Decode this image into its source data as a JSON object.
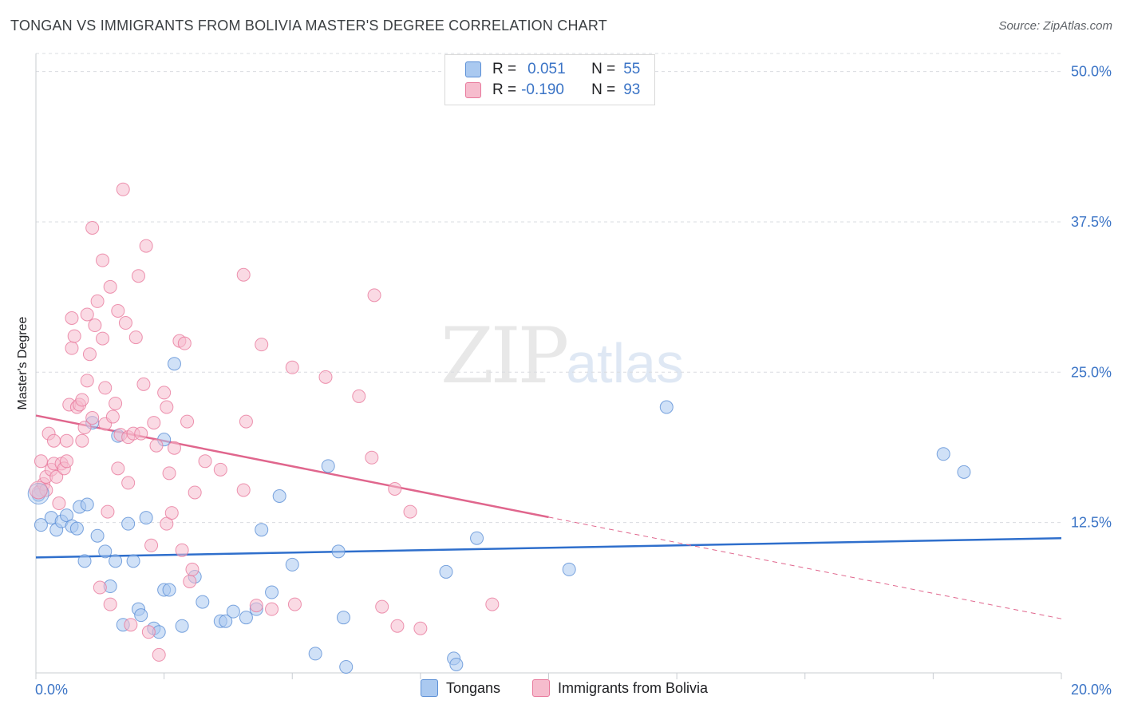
{
  "title": "TONGAN VS IMMIGRANTS FROM BOLIVIA MASTER'S DEGREE CORRELATION CHART",
  "source": "Source: ZipAtlas.com",
  "watermark": {
    "zip": "ZIP",
    "atlas": "atlas"
  },
  "legend": {
    "r_label": "R =",
    "n_label": "N =",
    "series": [
      {
        "name": "Tongans",
        "r": "0.051",
        "n": "55"
      },
      {
        "name": "Immigrants from Bolivia",
        "r": "-0.190",
        "n": "93"
      }
    ]
  },
  "chart_data": {
    "type": "scatter",
    "title": "TONGAN VS IMMIGRANTS FROM BOLIVIA MASTER'S DEGREE CORRELATION CHART",
    "xlabel": "",
    "ylabel": "Master's Degree",
    "xlim": [
      0,
      20
    ],
    "ylim": [
      0,
      51.5
    ],
    "x_tick_labels": [
      "0.0%",
      "20.0%"
    ],
    "y_ticks": [
      12.5,
      25.0,
      37.5,
      50.0
    ],
    "y_tick_labels": [
      "12.5%",
      "25.0%",
      "37.5%",
      "50.0%"
    ],
    "grid": true,
    "colors": {
      "tongans_fill": "#aac9f0",
      "tongans_stroke": "#5b8fd6",
      "tongans_line": "#2f6fcc",
      "bolivia_fill": "#f6bccd",
      "bolivia_stroke": "#e8799c",
      "bolivia_line": "#e0668d",
      "tick_label": "#3b74c6",
      "grid": "#dadce0"
    },
    "series": [
      {
        "name": "Tongans",
        "r": 0.051,
        "n": 55,
        "trend": {
          "x": [
            0,
            20
          ],
          "y": [
            9.6,
            11.2
          ],
          "dashed_from": null
        },
        "points": [
          [
            0.1,
            15.2
          ],
          [
            0.1,
            12.3
          ],
          [
            0.3,
            12.9
          ],
          [
            0.4,
            11.9
          ],
          [
            0.5,
            12.6
          ],
          [
            0.6,
            13.1
          ],
          [
            0.7,
            12.2
          ],
          [
            0.8,
            12.0
          ],
          [
            0.85,
            13.8
          ],
          [
            0.95,
            9.3
          ],
          [
            1.0,
            14.0
          ],
          [
            1.1,
            20.8
          ],
          [
            1.2,
            11.4
          ],
          [
            1.35,
            10.1
          ],
          [
            1.45,
            7.2
          ],
          [
            1.55,
            9.3
          ],
          [
            1.6,
            19.7
          ],
          [
            1.7,
            4.0
          ],
          [
            1.8,
            12.4
          ],
          [
            1.9,
            9.3
          ],
          [
            2.0,
            5.3
          ],
          [
            2.05,
            4.8
          ],
          [
            2.15,
            12.9
          ],
          [
            2.3,
            3.7
          ],
          [
            2.4,
            3.4
          ],
          [
            2.5,
            19.4
          ],
          [
            2.5,
            6.9
          ],
          [
            2.6,
            6.9
          ],
          [
            2.7,
            25.7
          ],
          [
            2.85,
            3.9
          ],
          [
            3.1,
            8.0
          ],
          [
            3.25,
            5.9
          ],
          [
            3.6,
            4.3
          ],
          [
            3.7,
            4.3
          ],
          [
            3.85,
            5.1
          ],
          [
            4.1,
            4.6
          ],
          [
            4.3,
            5.3
          ],
          [
            4.4,
            11.9
          ],
          [
            4.6,
            6.7
          ],
          [
            4.75,
            14.7
          ],
          [
            5.0,
            9.0
          ],
          [
            5.45,
            1.6
          ],
          [
            5.7,
            17.2
          ],
          [
            5.9,
            10.1
          ],
          [
            6.0,
            4.6
          ],
          [
            6.05,
            0.5
          ],
          [
            8.0,
            8.4
          ],
          [
            8.15,
            1.2
          ],
          [
            8.2,
            0.7
          ],
          [
            8.6,
            11.2
          ],
          [
            10.4,
            8.6
          ],
          [
            12.3,
            22.1
          ],
          [
            17.7,
            18.2
          ],
          [
            18.1,
            16.7
          ],
          [
            0.05,
            14.8
          ]
        ]
      },
      {
        "name": "Immigrants from Bolivia",
        "r": -0.19,
        "n": 93,
        "trend": {
          "x": [
            0,
            20
          ],
          "y": [
            21.4,
            4.5
          ],
          "dashed_from": 10.0
        },
        "points": [
          [
            0.05,
            15.0
          ],
          [
            0.1,
            17.6
          ],
          [
            0.15,
            15.7
          ],
          [
            0.2,
            16.3
          ],
          [
            0.2,
            15.2
          ],
          [
            0.25,
            19.9
          ],
          [
            0.3,
            16.9
          ],
          [
            0.35,
            17.4
          ],
          [
            0.35,
            19.3
          ],
          [
            0.4,
            16.3
          ],
          [
            0.45,
            14.1
          ],
          [
            0.5,
            17.4
          ],
          [
            0.55,
            17.0
          ],
          [
            0.6,
            19.3
          ],
          [
            0.6,
            17.6
          ],
          [
            0.65,
            22.3
          ],
          [
            0.7,
            27.0
          ],
          [
            0.7,
            29.5
          ],
          [
            0.75,
            28.0
          ],
          [
            0.8,
            22.1
          ],
          [
            0.85,
            22.3
          ],
          [
            0.9,
            19.3
          ],
          [
            0.9,
            22.7
          ],
          [
            0.95,
            20.4
          ],
          [
            1.0,
            24.3
          ],
          [
            1.0,
            29.8
          ],
          [
            1.05,
            26.5
          ],
          [
            1.1,
            21.2
          ],
          [
            1.1,
            37.0
          ],
          [
            1.15,
            28.9
          ],
          [
            1.2,
            30.9
          ],
          [
            1.25,
            7.1
          ],
          [
            1.3,
            34.3
          ],
          [
            1.3,
            27.8
          ],
          [
            1.35,
            23.7
          ],
          [
            1.35,
            20.7
          ],
          [
            1.4,
            13.4
          ],
          [
            1.45,
            32.1
          ],
          [
            1.45,
            5.7
          ],
          [
            1.5,
            21.3
          ],
          [
            1.55,
            22.4
          ],
          [
            1.6,
            17.0
          ],
          [
            1.6,
            30.1
          ],
          [
            1.65,
            19.8
          ],
          [
            1.7,
            40.2
          ],
          [
            1.75,
            29.1
          ],
          [
            1.8,
            19.6
          ],
          [
            1.8,
            15.8
          ],
          [
            1.85,
            4.0
          ],
          [
            1.9,
            19.9
          ],
          [
            1.95,
            27.9
          ],
          [
            2.0,
            33.0
          ],
          [
            2.05,
            19.9
          ],
          [
            2.1,
            24.0
          ],
          [
            2.15,
            35.5
          ],
          [
            2.2,
            3.4
          ],
          [
            2.25,
            10.6
          ],
          [
            2.3,
            20.8
          ],
          [
            2.35,
            18.9
          ],
          [
            2.4,
            1.5
          ],
          [
            2.5,
            23.3
          ],
          [
            2.55,
            22.1
          ],
          [
            2.55,
            12.4
          ],
          [
            2.6,
            16.6
          ],
          [
            2.65,
            13.3
          ],
          [
            2.7,
            18.7
          ],
          [
            2.8,
            27.6
          ],
          [
            2.85,
            10.2
          ],
          [
            2.9,
            27.4
          ],
          [
            2.95,
            20.9
          ],
          [
            3.0,
            7.6
          ],
          [
            3.05,
            8.6
          ],
          [
            3.1,
            15.0
          ],
          [
            3.3,
            17.6
          ],
          [
            3.6,
            16.9
          ],
          [
            4.05,
            15.2
          ],
          [
            4.05,
            33.1
          ],
          [
            4.1,
            20.9
          ],
          [
            4.3,
            5.6
          ],
          [
            4.4,
            27.3
          ],
          [
            4.6,
            5.3
          ],
          [
            5.0,
            25.4
          ],
          [
            5.05,
            5.7
          ],
          [
            5.65,
            24.6
          ],
          [
            6.3,
            23.0
          ],
          [
            6.55,
            17.9
          ],
          [
            6.6,
            31.4
          ],
          [
            6.75,
            5.5
          ],
          [
            7.0,
            15.3
          ],
          [
            7.05,
            3.9
          ],
          [
            7.3,
            13.4
          ],
          [
            7.5,
            3.7
          ],
          [
            8.9,
            5.7
          ]
        ]
      }
    ]
  }
}
